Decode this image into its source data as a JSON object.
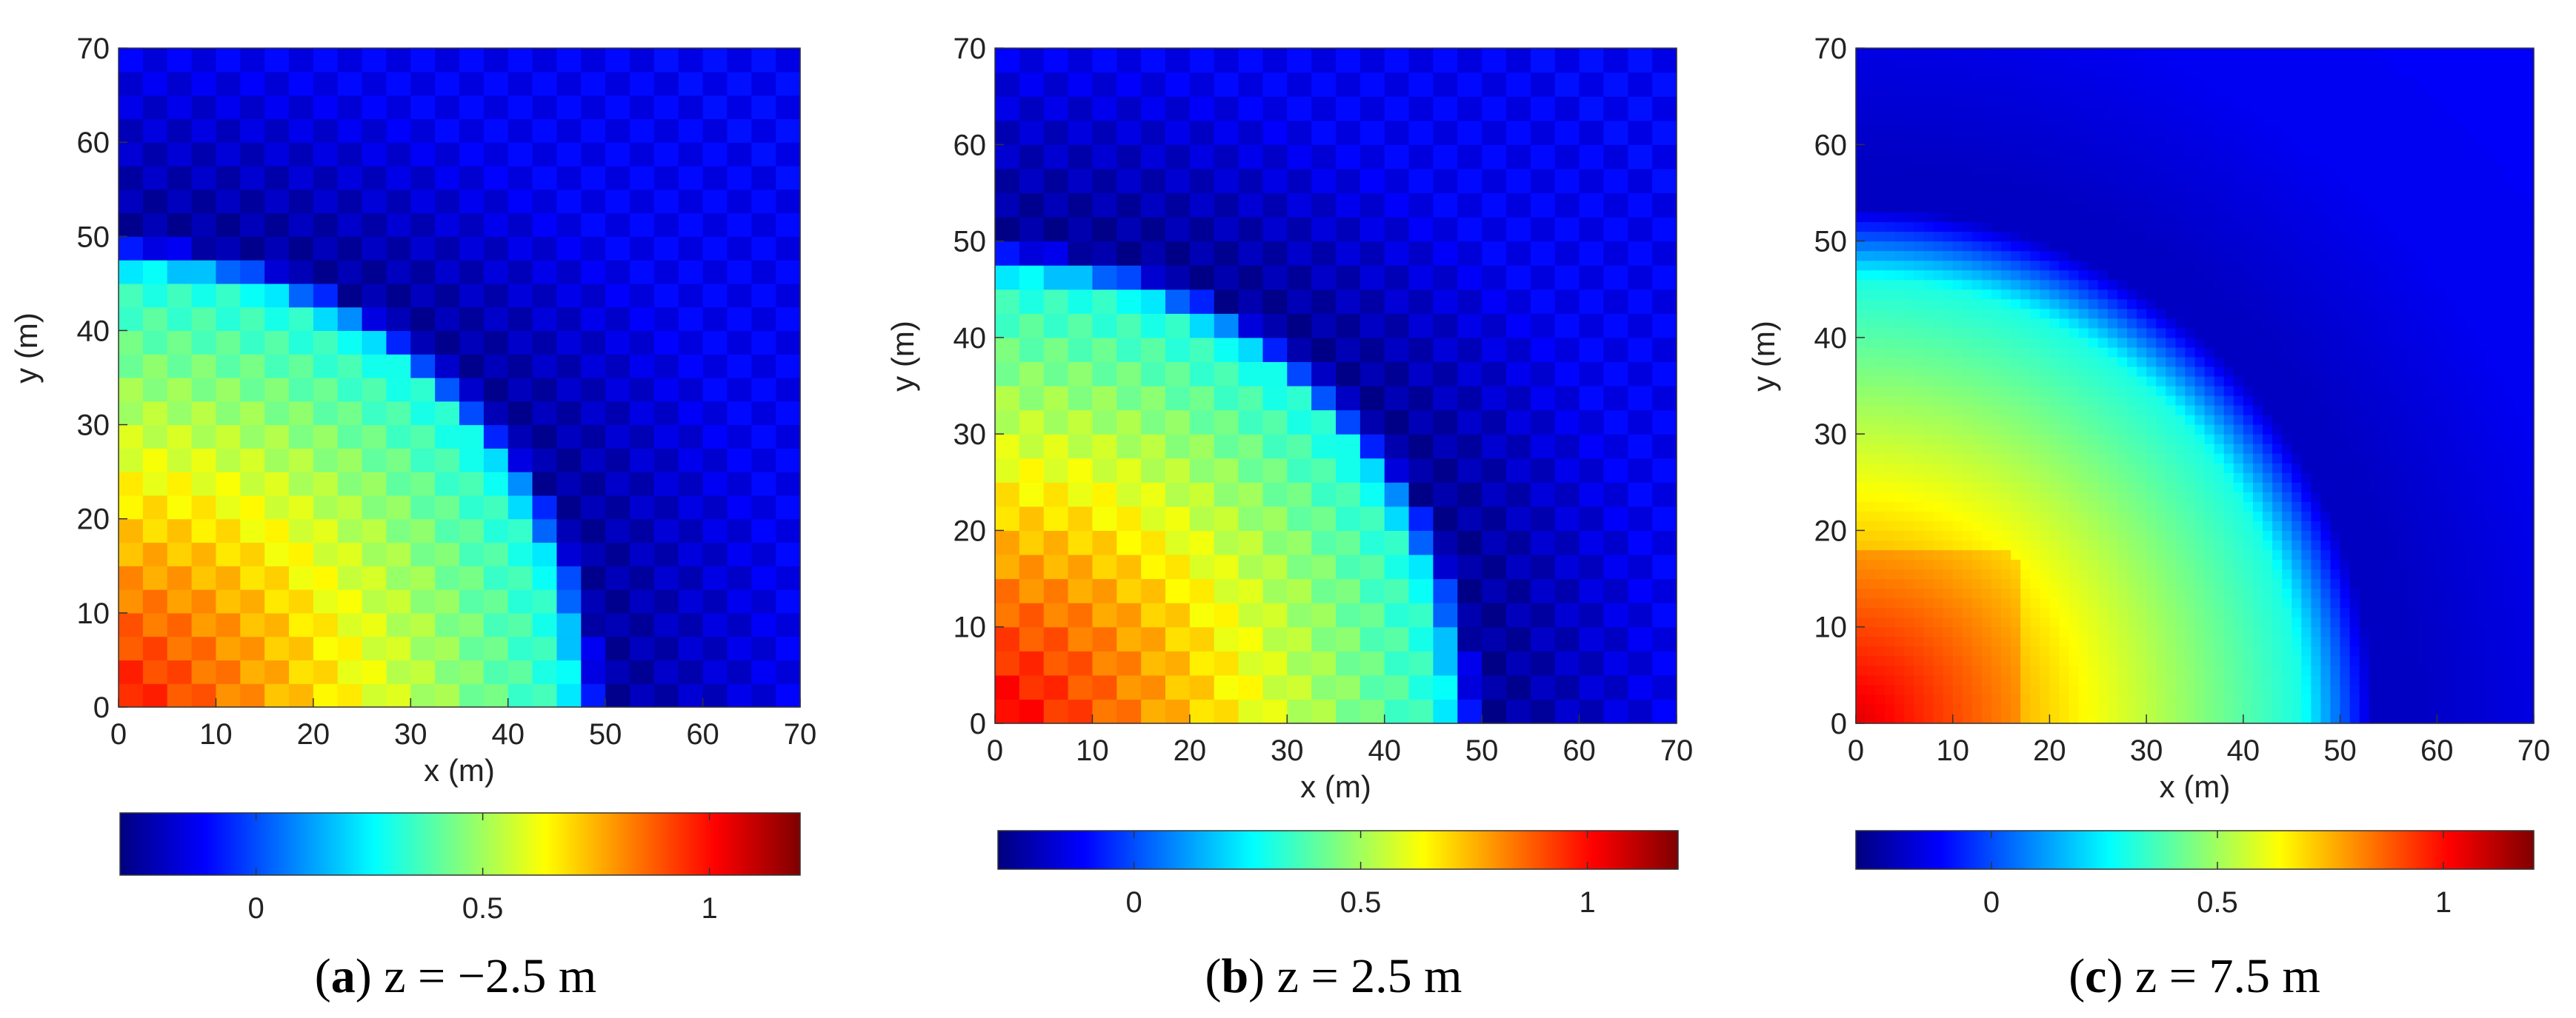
{
  "colormap": [
    "#00007f",
    "#0000ff",
    "#007fff",
    "#00ffff",
    "#7fff7f",
    "#ffff00",
    "#ff7f00",
    "#ff0000",
    "#7f0000"
  ],
  "chart_data": [
    {
      "type": "heatmap",
      "caption_letter": "a",
      "caption_text": "z = −2.5 m",
      "xlabel": "x (m)",
      "ylabel": "y (m)",
      "xlim": [
        0,
        70
      ],
      "ylim": [
        0,
        70
      ],
      "xticks": [
        "0",
        "10",
        "20",
        "30",
        "40",
        "50",
        "60",
        "70"
      ],
      "yticks": [
        "0",
        "10",
        "20",
        "30",
        "40",
        "50",
        "60",
        "70"
      ],
      "colorbar_range": [
        -0.3,
        1.2
      ],
      "colorbar_ticks": [
        "0",
        "0.5",
        "1"
      ],
      "grid_cells": 28,
      "model": {
        "r_inner": 46,
        "r_outer": 52,
        "peak": 1.0,
        "core_value": 0.3,
        "trough": -0.25,
        "ring_value": -0.13,
        "background": -0.12,
        "blocky": true
      }
    },
    {
      "type": "heatmap",
      "caption_letter": "b",
      "caption_text": "z = 2.5 m",
      "xlabel": "x (m)",
      "ylabel": "y (m)",
      "xlim": [
        0,
        70
      ],
      "ylim": [
        0,
        70
      ],
      "xticks": [
        "0",
        "10",
        "20",
        "30",
        "40",
        "50",
        "60",
        "70"
      ],
      "yticks": [
        "0",
        "10",
        "20",
        "30",
        "40",
        "50",
        "60",
        "70"
      ],
      "colorbar_range": [
        -0.3,
        1.2
      ],
      "colorbar_ticks": [
        "0",
        "0.5",
        "1"
      ],
      "grid_cells": 28,
      "model": {
        "r_inner": 46,
        "r_outer": 52,
        "peak": 1.05,
        "core_value": 0.3,
        "trough": -0.26,
        "ring_value": -0.13,
        "background": -0.12,
        "blocky": true
      }
    },
    {
      "type": "heatmap",
      "caption_letter": "c",
      "caption_text": "z = 7.5 m",
      "xlabel": "x (m)",
      "ylabel": "y (m)",
      "xlim": [
        0,
        70
      ],
      "ylim": [
        0,
        70
      ],
      "xticks": [
        "0",
        "10",
        "20",
        "30",
        "40",
        "50",
        "60",
        "70"
      ],
      "yticks": [
        "0",
        "10",
        "20",
        "30",
        "40",
        "50",
        "60",
        "70"
      ],
      "colorbar_range": [
        -0.3,
        1.2
      ],
      "colorbar_ticks": [
        "0",
        "0.5",
        "1"
      ],
      "grid_cells": 28,
      "model": {
        "r_inner": 46,
        "r_outer": 58,
        "peak": 1.0,
        "core_value": 0.3,
        "trough": -0.2,
        "ring_value": -0.13,
        "background": -0.12,
        "blocky": false
      }
    }
  ]
}
